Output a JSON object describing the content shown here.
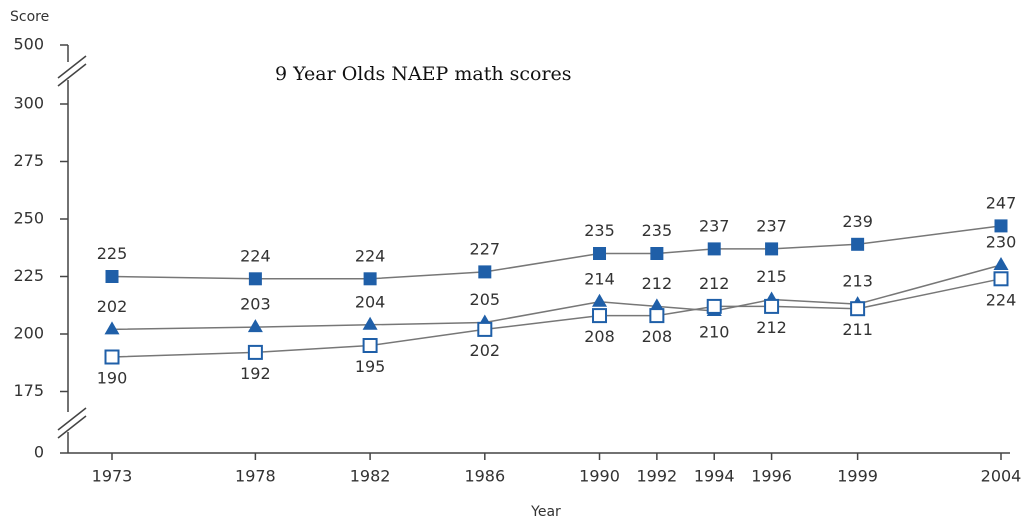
{
  "chart_data": {
    "type": "line",
    "title": "9 Year Olds NAEP math scores",
    "ylabel": "Score",
    "xlabel": "Year",
    "x": [
      1973,
      1978,
      1982,
      1986,
      1990,
      1992,
      1994,
      1996,
      1999,
      2004
    ],
    "xlim": [
      1973,
      2004
    ],
    "xticks": [
      1973,
      1978,
      1982,
      1986,
      1990,
      1992,
      1994,
      1996,
      1999,
      2004
    ],
    "ylim": [
      0,
      500
    ],
    "yticks": [
      0,
      175,
      200,
      225,
      250,
      275,
      300,
      500
    ],
    "series": [
      {
        "color": "#1f5fa8",
        "marker": "filled-square",
        "values": [
          225,
          224,
          224,
          227,
          235,
          235,
          237,
          237,
          239,
          247
        ]
      },
      {
        "color": "#1f5fa8",
        "marker": "filled-triangle",
        "values": [
          202,
          203,
          204,
          205,
          214,
          212,
          210,
          215,
          213,
          230
        ]
      },
      {
        "color": "#1f5fa8",
        "marker": "open-square",
        "values": [
          190,
          192,
          195,
          202,
          208,
          208,
          212,
          212,
          211,
          224
        ]
      }
    ]
  }
}
